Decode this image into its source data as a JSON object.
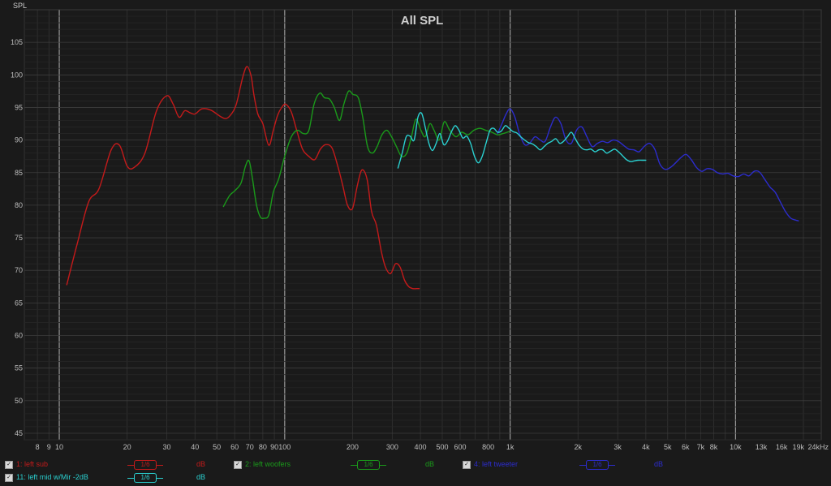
{
  "chart_data": {
    "type": "line",
    "title": "All SPL",
    "ylabel": "SPL",
    "xlabel": "",
    "x_scale": "log",
    "xlim": [
      7,
      24000
    ],
    "ylim": [
      44,
      110
    ],
    "grid": true,
    "x_tick_labels": [
      {
        "v": 8,
        "t": "8"
      },
      {
        "v": 9,
        "t": "9"
      },
      {
        "v": 10,
        "t": "10"
      },
      {
        "v": 20,
        "t": "20"
      },
      {
        "v": 30,
        "t": "30"
      },
      {
        "v": 40,
        "t": "40"
      },
      {
        "v": 50,
        "t": "50"
      },
      {
        "v": 60,
        "t": "60"
      },
      {
        "v": 70,
        "t": "70"
      },
      {
        "v": 80,
        "t": "80"
      },
      {
        "v": 90,
        "t": "90"
      },
      {
        "v": 100,
        "t": "100"
      },
      {
        "v": 200,
        "t": "200"
      },
      {
        "v": 300,
        "t": "300"
      },
      {
        "v": 400,
        "t": "400"
      },
      {
        "v": 500,
        "t": "500"
      },
      {
        "v": 600,
        "t": "600"
      },
      {
        "v": 800,
        "t": "800"
      },
      {
        "v": 1000,
        "t": "1k"
      },
      {
        "v": 2000,
        "t": "2k"
      },
      {
        "v": 3000,
        "t": "3k"
      },
      {
        "v": 4000,
        "t": "4k"
      },
      {
        "v": 5000,
        "t": "5k"
      },
      {
        "v": 6000,
        "t": "6k"
      },
      {
        "v": 7000,
        "t": "7k"
      },
      {
        "v": 8000,
        "t": "8k"
      },
      {
        "v": 10000,
        "t": "10k"
      },
      {
        "v": 13000,
        "t": "13k"
      },
      {
        "v": 16000,
        "t": "16k"
      },
      {
        "v": 19000,
        "t": "19k"
      },
      {
        "v": 24000,
        "t": "24kHz"
      }
    ],
    "y_ticks": [
      45,
      50,
      55,
      60,
      65,
      70,
      75,
      80,
      85,
      90,
      95,
      100,
      105
    ],
    "series": [
      {
        "name": "1: left sub",
        "color": "#c41a1a",
        "x": [
          10.8,
          12,
          13.5,
          15,
          17,
          18.5,
          20,
          21.5,
          24,
          27,
          30,
          32,
          34,
          36,
          38,
          40,
          43,
          47,
          52,
          55,
          58,
          61,
          65,
          68,
          71,
          73,
          76,
          80,
          85,
          89,
          93,
          97,
          101,
          107,
          113,
          120,
          128,
          136,
          144,
          152,
          162,
          172,
          181,
          190,
          200,
          210,
          220,
          232,
          243,
          255,
          268,
          280,
          295,
          310,
          325,
          340,
          355,
          370,
          385,
          395
        ],
        "y": [
          67.8,
          74,
          80.5,
          82.5,
          88.5,
          89.2,
          86,
          85.8,
          88,
          94.5,
          96.8,
          95.5,
          93.5,
          94.5,
          94.2,
          94,
          94.8,
          94.6,
          93.6,
          93.3,
          94,
          95.5,
          99.5,
          101.3,
          99.8,
          97,
          94,
          92.5,
          89.2,
          91.5,
          93.8,
          95,
          95.5,
          94.3,
          91.5,
          88.6,
          87.5,
          87,
          88.6,
          89.3,
          88.8,
          86,
          83,
          80,
          79.5,
          83,
          85.4,
          84,
          79,
          77,
          73,
          70.5,
          69.5,
          71,
          70.5,
          68.5,
          67.5,
          67.2,
          67.2,
          67.2
        ]
      },
      {
        "name": "2: left woofers",
        "color": "#1a9a1a",
        "x": [
          53.5,
          57,
          60,
          64,
          67,
          69.5,
          72,
          75,
          78,
          81,
          85,
          89,
          94,
          100,
          107,
          114,
          121,
          128,
          135,
          143,
          150,
          158,
          166,
          175,
          183,
          192,
          201,
          212,
          222,
          233,
          245,
          257,
          270,
          284,
          298,
          313,
          330,
          348,
          365,
          382,
          402,
          420,
          440,
          460,
          485,
          510,
          540,
          575,
          610,
          650,
          690,
          735,
          780,
          830,
          880,
          930,
          990
        ],
        "y": [
          79.8,
          81.5,
          82.2,
          83.4,
          86,
          86.8,
          84,
          80,
          78.2,
          78,
          78.5,
          82,
          84,
          87.5,
          90.5,
          91.5,
          91,
          91.5,
          95.5,
          97.2,
          96.5,
          96.3,
          95,
          93,
          95.5,
          97.5,
          97,
          96.5,
          93.5,
          89,
          88,
          89,
          90.8,
          91.5,
          90.5,
          89,
          87.5,
          88,
          90.5,
          93.2,
          91.5,
          90.5,
          92.5,
          91.5,
          90,
          92.8,
          91.5,
          90.5,
          91.2,
          90.8,
          91.5,
          91.8,
          91.5,
          91.2,
          90.8,
          91,
          91.3
        ]
      },
      {
        "name": "4: left tweeter",
        "color": "#2c2ccc",
        "x": [
          880,
          920,
          960,
          1000,
          1050,
          1100,
          1160,
          1220,
          1290,
          1360,
          1430,
          1510,
          1590,
          1680,
          1770,
          1870,
          1970,
          2080,
          2190,
          2310,
          2440,
          2570,
          2710,
          2860,
          3020,
          3180,
          3360,
          3540,
          3730,
          3930,
          4150,
          4380,
          4620,
          4870,
          5140,
          5420,
          5720,
          6030,
          6360,
          6710,
          7080,
          7470,
          7880,
          8310,
          8770,
          9250,
          9760,
          10300,
          10870,
          11460,
          12090,
          12760,
          13460,
          14200,
          14980,
          15800,
          16670,
          17590,
          18550,
          19000
        ],
        "y": [
          91,
          92.5,
          94,
          94.8,
          93.5,
          91,
          89.3,
          89.5,
          90.5,
          90,
          89.8,
          92,
          93.5,
          92.5,
          90,
          89.5,
          91.5,
          92,
          90.5,
          89,
          89.5,
          89.8,
          89.6,
          90,
          89.8,
          89.2,
          88.6,
          88.5,
          88.2,
          89,
          89.5,
          88.6,
          86.3,
          85.5,
          85.8,
          86.5,
          87.3,
          87.8,
          87,
          85.8,
          85.2,
          85.6,
          85.5,
          85,
          84.8,
          84.9,
          84.5,
          84.4,
          84.8,
          84.5,
          85.2,
          85.1,
          84,
          82.8,
          82,
          80.5,
          79,
          78,
          77.7,
          77.6
        ]
      },
      {
        "name": "11: left mid w/Mir -2dB",
        "color": "#2ad0d0",
        "x": [
          318,
          332,
          346,
          360,
          375,
          390,
          405,
          420,
          436,
          452,
          470,
          488,
          507,
          527,
          548,
          570,
          593,
          617,
          642,
          668,
          695,
          723,
          752,
          782,
          814,
          846,
          880,
          915,
          952,
          990,
          1030,
          1070,
          1115,
          1160,
          1205,
          1255,
          1305,
          1360,
          1415,
          1470,
          1530,
          1595,
          1660,
          1725,
          1795,
          1870,
          1945,
          2025,
          2110,
          2195,
          2285,
          2380,
          2475,
          2575,
          2680,
          2790,
          2905,
          3025,
          3150,
          3280,
          3415,
          3555,
          3700,
          3850,
          4000
        ],
        "y": [
          85.7,
          88,
          90.5,
          90.6,
          90,
          93.5,
          94.1,
          92,
          89.5,
          88.4,
          89.5,
          91,
          89.3,
          89.8,
          91.2,
          92.2,
          91.5,
          90.3,
          90.6,
          89.5,
          87.5,
          86.5,
          87.5,
          89.5,
          91.5,
          91.8,
          91.2,
          91.4,
          92.2,
          91.8,
          91.3,
          91.1,
          90.5,
          90,
          89.6,
          89.4,
          89,
          88.5,
          89,
          89.5,
          89.8,
          90.2,
          89.5,
          89.8,
          90.5,
          91.2,
          90.2,
          89.2,
          88.6,
          88.5,
          88.6,
          88.2,
          88.5,
          88.5,
          88,
          88.3,
          88.6,
          88.2,
          87.6,
          87,
          86.7,
          86.8,
          86.9,
          86.9,
          86.9
        ]
      }
    ]
  },
  "legend": [
    {
      "checked": "✓",
      "label": "1: left sub",
      "smoothing": "1/6",
      "unit": "dB"
    },
    {
      "checked": "✓",
      "label": "2: left woofers",
      "smoothing": "1/6",
      "unit": "dB"
    },
    {
      "checked": "✓",
      "label": "4: left tweeter",
      "smoothing": "1/6",
      "unit": "dB"
    },
    {
      "checked": "✓",
      "label": "11: left mid w/Mir -2dB",
      "smoothing": "1/6",
      "unit": "dB"
    }
  ]
}
